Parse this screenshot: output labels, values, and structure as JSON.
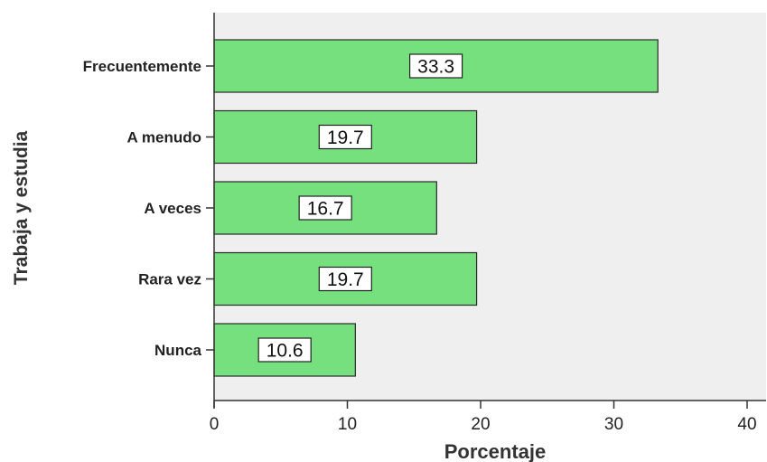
{
  "chart_data": {
    "type": "bar",
    "orientation": "horizontal",
    "categories": [
      "Frecuentemente",
      "A menudo",
      "A veces",
      "Rara vez",
      "Nunca"
    ],
    "values": [
      33.3,
      19.7,
      16.7,
      19.7,
      10.6
    ],
    "value_labels": [
      "33.3",
      "19.7",
      "16.7",
      "19.7",
      "10.6"
    ],
    "xlabel": "Porcentaje",
    "ylabel": "Trabaja y estudia",
    "xlim": [
      0,
      40
    ],
    "x_ticks": [
      "0",
      "10",
      "20",
      "30",
      "40"
    ],
    "grid": false,
    "legend": "none",
    "colors": {
      "bar_fill": "#76e07f",
      "bar_stroke": "#2a2a2a",
      "plot_background": "#efefef",
      "axis": "#333333"
    }
  }
}
